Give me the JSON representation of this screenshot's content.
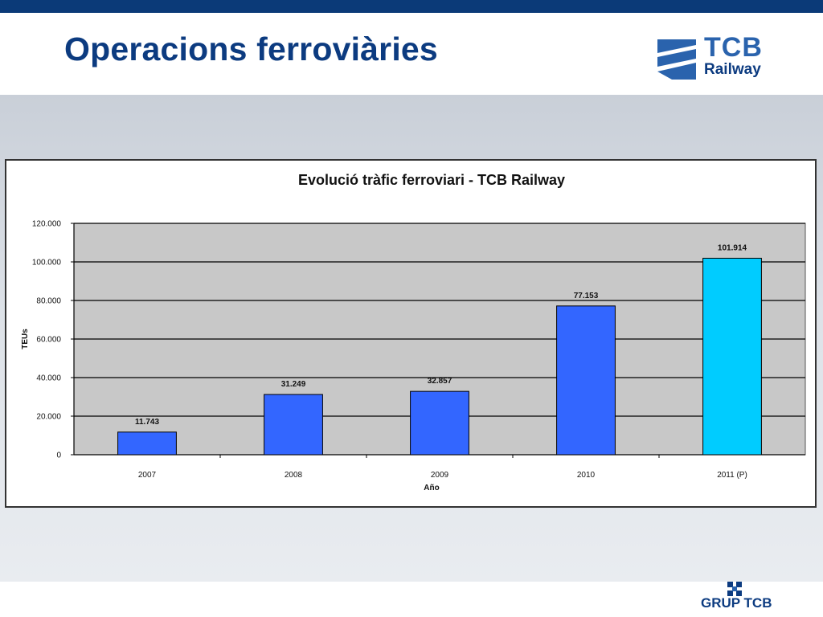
{
  "slide": {
    "title": "Operacions ferroviàries"
  },
  "brand": {
    "logo_word_1": "TCB",
    "logo_word_2": "Railway",
    "footer_text": "GRUP TCB",
    "primary_color": "#0c3b80",
    "accent_color": "#2a63ad"
  },
  "chart_data": {
    "type": "bar",
    "title": "Evolució tràfic ferroviari - TCB Railway",
    "xlabel": "Año",
    "ylabel": "TEUs",
    "categories": [
      "2007",
      "2008",
      "2009",
      "2010",
      "2011 (P)"
    ],
    "values": [
      11743,
      31249,
      32857,
      77153,
      101914
    ],
    "data_labels": [
      "11.743",
      "31.249",
      "32.857",
      "77.153",
      "101.914"
    ],
    "bar_colors": [
      "#3366ff",
      "#3366ff",
      "#3366ff",
      "#3366ff",
      "#00ccff"
    ],
    "ylim": [
      0,
      120000
    ],
    "yticks": [
      0,
      20000,
      40000,
      60000,
      80000,
      100000,
      120000
    ],
    "ytick_labels": [
      "0",
      "20.000",
      "40.000",
      "60.000",
      "80.000",
      "100.000",
      "120.000"
    ],
    "grid": true,
    "plot_background": "#c8c8c8",
    "legend": "none"
  }
}
